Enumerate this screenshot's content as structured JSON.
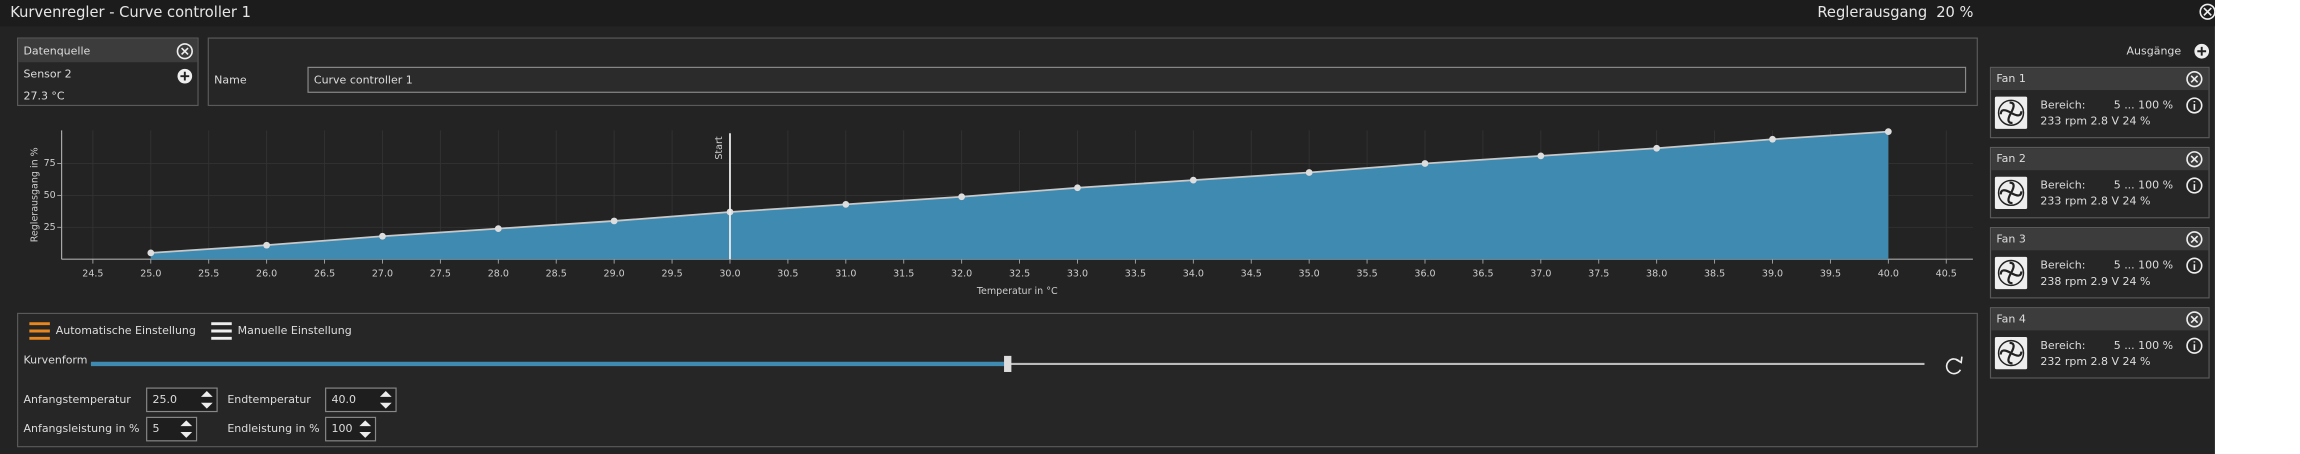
{
  "header": {
    "title": "Kurvenregler  -  Curve controller 1",
    "output_label": "Reglerausgang",
    "output_value": "20 %"
  },
  "source": {
    "title": "Datenquelle",
    "sensor": "Sensor 2",
    "reading": "27.3 °C"
  },
  "name_field": {
    "label": "Name",
    "value": "Curve controller 1"
  },
  "chart_data": {
    "type": "area",
    "x_label": "Temperatur in °C",
    "y_label": "Reglerausgang in %",
    "x": [
      25,
      26,
      27,
      28,
      29,
      30,
      31,
      32,
      33,
      34,
      35,
      36,
      37,
      38,
      39,
      40
    ],
    "values": [
      5,
      11,
      18,
      24,
      30,
      37,
      43,
      49,
      56,
      62,
      68,
      75,
      81,
      87,
      94,
      100
    ],
    "color": "#3f8ab0",
    "line_color": "#c8c8c8",
    "xlim": [
      24.23,
      40.73
    ],
    "ylim": [
      0,
      101
    ],
    "xticks": [
      {
        "value": 24.5,
        "label": "24.5"
      },
      {
        "value": 25,
        "label": "25.0"
      },
      {
        "value": 25.5,
        "label": "25.5"
      },
      {
        "value": 26,
        "label": "26.0"
      },
      {
        "value": 26.5,
        "label": "26.5"
      },
      {
        "value": 27,
        "label": "27.0"
      },
      {
        "value": 27.5,
        "label": "27.5"
      },
      {
        "value": 28,
        "label": "28.0"
      },
      {
        "value": 28.5,
        "label": "28.5"
      },
      {
        "value": 29,
        "label": "29.0"
      },
      {
        "value": 29.5,
        "label": "29.5"
      },
      {
        "value": 30,
        "label": "30.0"
      },
      {
        "value": 30.5,
        "label": "30.5"
      },
      {
        "value": 31,
        "label": "31.0"
      },
      {
        "value": 31.5,
        "label": "31.5"
      },
      {
        "value": 32,
        "label": "32.0"
      },
      {
        "value": 32.5,
        "label": "32.5"
      },
      {
        "value": 33,
        "label": "33.0"
      },
      {
        "value": 33.5,
        "label": "33.5"
      },
      {
        "value": 34,
        "label": "34.0"
      },
      {
        "value": 34.5,
        "label": "34.5"
      },
      {
        "value": 35,
        "label": "35.0"
      },
      {
        "value": 35.5,
        "label": "35.5"
      },
      {
        "value": 36,
        "label": "36.0"
      },
      {
        "value": 36.5,
        "label": "36.5"
      },
      {
        "value": 37,
        "label": "37.0"
      },
      {
        "value": 37.5,
        "label": "37.5"
      },
      {
        "value": 38,
        "label": "38.0"
      },
      {
        "value": 38.5,
        "label": "38.5"
      },
      {
        "value": 39,
        "label": "39.0"
      },
      {
        "value": 39.5,
        "label": "39.5"
      },
      {
        "value": 40,
        "label": "40.0"
      },
      {
        "value": 40.5,
        "label": "40.5"
      }
    ],
    "yticks": [
      25,
      50,
      75
    ],
    "grid": true,
    "annotation": {
      "x": 30,
      "label": "Start"
    }
  },
  "controls": {
    "auto": "Automatische Einstellung",
    "manual": "Manuelle Einstellung",
    "curve_label": "Kurvenform",
    "curve_slider": {
      "value": 50,
      "range": [
        0,
        100
      ]
    },
    "start_temp_label": "Anfangstemperatur",
    "start_temp": "25.0",
    "end_temp_label": "Endtemperatur",
    "end_temp": "40.0",
    "start_power_label": "Anfangsleistung in %",
    "start_power": "5",
    "end_power_label": "Endleistung in %",
    "end_power": "100"
  },
  "outputs": {
    "title": "Ausgänge",
    "fans": [
      {
        "name": "Fan 1",
        "range_label": "Bereich:",
        "range": "5 ... 100  %",
        "status": "233 rpm 2.8 V 24 %"
      },
      {
        "name": "Fan 2",
        "range_label": "Bereich:",
        "range": "5 ... 100  %",
        "status": "233 rpm 2.8 V 24 %"
      },
      {
        "name": "Fan 3",
        "range_label": "Bereich:",
        "range": "5 ... 100  %",
        "status": "238 rpm 2.9 V 24 %"
      },
      {
        "name": "Fan 4",
        "range_label": "Bereich:",
        "range": "5 ... 100  %",
        "status": "232 rpm 2.8 V 24 %"
      }
    ]
  }
}
